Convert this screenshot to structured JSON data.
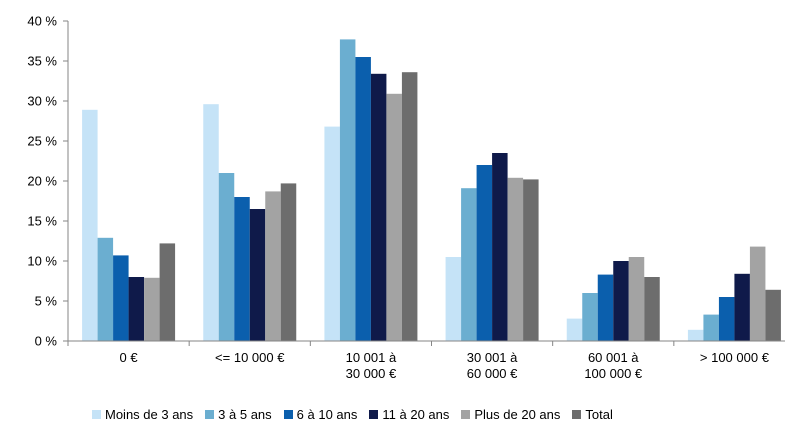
{
  "chart_data": {
    "type": "bar",
    "categories": [
      [
        "0 €"
      ],
      [
        "<= 10 000 €"
      ],
      [
        "10 001 à",
        "30 000 €"
      ],
      [
        "30 001 à",
        "60 000 €"
      ],
      [
        "60 001 à",
        "100 000 €"
      ],
      [
        "> 100 000 €"
      ]
    ],
    "y_ticks": [
      "0 %",
      "5 %",
      "10 %",
      "15 %",
      "20 %",
      "25 %",
      "30 %",
      "35 %",
      "40 %"
    ],
    "ylim": [
      0,
      40
    ],
    "grid": false,
    "legend_position": "bottom",
    "series": [
      {
        "name": "Moins de 3 ans",
        "color": "#c5e3f7",
        "values": [
          28.9,
          29.6,
          26.8,
          10.5,
          2.8,
          1.4
        ]
      },
      {
        "name": "3 à 5 ans",
        "color": "#6baed0",
        "values": [
          12.9,
          21.0,
          37.7,
          19.1,
          6.0,
          3.3
        ]
      },
      {
        "name": "6 à 10 ans",
        "color": "#0b5fad",
        "values": [
          10.7,
          18.0,
          35.5,
          22.0,
          8.3,
          5.5
        ]
      },
      {
        "name": "11 à 20 ans",
        "color": "#0f1a4a",
        "values": [
          8.0,
          16.5,
          33.4,
          23.5,
          10.0,
          8.4
        ]
      },
      {
        "name": "Plus de 20 ans",
        "color": "#a3a3a3",
        "values": [
          7.9,
          18.7,
          30.9,
          20.4,
          10.5,
          11.8
        ]
      },
      {
        "name": "Total",
        "color": "#6d6d6d",
        "values": [
          12.2,
          19.7,
          33.6,
          20.2,
          8.0,
          6.4
        ]
      }
    ]
  }
}
